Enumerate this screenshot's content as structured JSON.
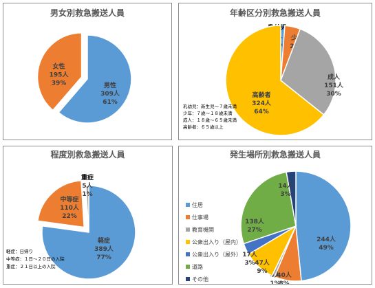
{
  "chart_data": [
    {
      "type": "pie",
      "title": "男女別救急搬送人員",
      "slices": [
        {
          "label": "男性",
          "value": 309,
          "count": "309人",
          "pct": "61%",
          "color": "#5b9bd5"
        },
        {
          "label": "女性",
          "value": 195,
          "count": "195人",
          "pct": "39%",
          "color": "#ed7d31",
          "exploded": true
        }
      ]
    },
    {
      "type": "pie",
      "title": "年齢区分別救急搬送人員",
      "slices": [
        {
          "label": "乳幼児",
          "value": 6,
          "count": "6人",
          "pct": "1%",
          "color": "#5b9bd5"
        },
        {
          "label": "少年",
          "value": 23,
          "count": "23人",
          "pct": "5%",
          "color": "#ed7d31"
        },
        {
          "label": "成人",
          "value": 151,
          "count": "151人",
          "pct": "30%",
          "color": "#a5a5a5"
        },
        {
          "label": "高齢者",
          "value": 324,
          "count": "324人",
          "pct": "64%",
          "color": "#ffc000"
        }
      ],
      "notes": [
        "乳幼児：新生児～７歳未満",
        "少年：７歳～１８歳未満",
        "成人：１８歳～６５歳未満",
        "高齢者：６５歳以上"
      ]
    },
    {
      "type": "pie",
      "title": "程度別救急搬送人員",
      "slices": [
        {
          "label": "軽症",
          "value": 389,
          "count": "389人",
          "pct": "77%",
          "color": "#5b9bd5"
        },
        {
          "label": "中等症",
          "value": 110,
          "count": "110人",
          "pct": "22%",
          "color": "#ed7d31",
          "exploded": true
        },
        {
          "label": "重症",
          "value": 5,
          "count": "5人",
          "pct": "1%",
          "color": "#a5a5a5"
        }
      ],
      "notes": [
        "軽症：日帰り",
        "中等症：１日～２０日の入院",
        "重症：２１日以上の入院"
      ]
    },
    {
      "type": "pie",
      "title": "発生場所別救急搬送人員",
      "slices": [
        {
          "label": "住居",
          "value": 244,
          "count": "244人",
          "pct": "49%",
          "color": "#5b9bd5"
        },
        {
          "label": "仕事場",
          "value": 40,
          "count": "40人",
          "pct": "8%",
          "color": "#ed7d31"
        },
        {
          "label": "教育機関",
          "value": 4,
          "count": "4人",
          "pct": "1%",
          "color": "#a5a5a5"
        },
        {
          "label": "公衆出入り（屋内）",
          "value": 47,
          "count": "47人",
          "pct": "9%",
          "color": "#ffc000"
        },
        {
          "label": "公衆出入り（屋外）",
          "value": 17,
          "count": "17人",
          "pct": "3%",
          "color": "#4472c4"
        },
        {
          "label": "道路",
          "value": 138,
          "count": "138人",
          "pct": "27%",
          "color": "#70ad47"
        },
        {
          "label": "その他",
          "value": 14,
          "count": "14人",
          "pct": "3%",
          "color": "#264478"
        }
      ],
      "legend": [
        "住居",
        "仕事場",
        "教育機関",
        "公衆出入り（屋内）",
        "公衆出入り（屋外）",
        "道路",
        "その他"
      ]
    }
  ]
}
